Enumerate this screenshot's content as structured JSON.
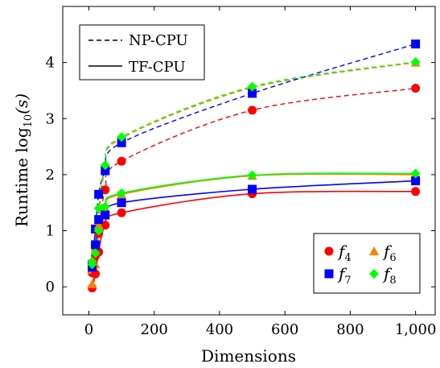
{
  "chart_data": {
    "type": "line",
    "xlabel": "Dimensions",
    "ylabel_prefix": "Runtime log",
    "ylabel_sub": "10",
    "ylabel_suffix": "(s)",
    "xlim": [
      -80,
      1060
    ],
    "ylim": [
      -0.5,
      5.0
    ],
    "x_ticks": [
      0,
      200,
      400,
      600,
      800,
      1000
    ],
    "x_tick_labels": [
      "0",
      "200",
      "400",
      "600",
      "800",
      "1,000"
    ],
    "y_ticks": [
      0,
      1,
      2,
      3,
      4
    ],
    "y_tick_labels": [
      "0",
      "1",
      "2",
      "3",
      "4"
    ],
    "x": [
      10,
      20,
      30,
      50,
      100,
      500,
      1000
    ],
    "style_legend": {
      "placement": "top-left",
      "entries": [
        {
          "label": "NP-CPU",
          "dash": "dashed"
        },
        {
          "label": "TF-CPU",
          "dash": "solid"
        }
      ]
    },
    "marker_legend": {
      "placement": "bottom-right",
      "entries": [
        {
          "base": "f",
          "sub": "4",
          "marker": "circle",
          "color": "#ff0000"
        },
        {
          "base": "f",
          "sub": "6",
          "marker": "triangle",
          "color": "#ff8000"
        },
        {
          "base": "f",
          "sub": "7",
          "marker": "square",
          "color": "#0000ff"
        },
        {
          "base": "f",
          "sub": "8",
          "marker": "diamond",
          "color": "#00ff00"
        }
      ]
    },
    "series": [
      {
        "function": "f4",
        "backend": "NP-CPU",
        "dash": "dashed",
        "color": "#ff0000",
        "marker": "circle",
        "values": [
          0.25,
          0.55,
          0.95,
          1.73,
          2.24,
          3.15,
          3.54
        ]
      },
      {
        "function": "f6",
        "backend": "NP-CPU",
        "dash": "dashed",
        "color": "#ff8000",
        "marker": "triangle",
        "values": [
          0.3,
          0.7,
          1.2,
          2.1,
          2.65,
          3.55,
          4.0
        ]
      },
      {
        "function": "f7",
        "backend": "NP-CPU",
        "dash": "dashed",
        "color": "#0000ff",
        "marker": "square",
        "values": [
          0.4,
          1.03,
          1.65,
          2.07,
          2.57,
          3.45,
          4.33
        ]
      },
      {
        "function": "f8",
        "backend": "NP-CPU",
        "dash": "dashed",
        "color": "#00ff00",
        "marker": "diamond",
        "values": [
          0.45,
          0.75,
          1.4,
          2.17,
          2.67,
          3.57,
          4.01
        ]
      },
      {
        "function": "f4",
        "backend": "TF-CPU",
        "dash": "solid",
        "color": "#ff0000",
        "marker": "circle",
        "values": [
          -0.02,
          0.23,
          0.62,
          1.1,
          1.32,
          1.66,
          1.7
        ]
      },
      {
        "function": "f6",
        "backend": "TF-CPU",
        "dash": "solid",
        "color": "#ff8000",
        "marker": "triangle",
        "values": [
          0.05,
          0.4,
          1.1,
          1.4,
          1.65,
          1.98,
          2.0
        ]
      },
      {
        "function": "f7",
        "backend": "TF-CPU",
        "dash": "solid",
        "color": "#0000ff",
        "marker": "square",
        "values": [
          0.35,
          0.75,
          1.2,
          1.28,
          1.5,
          1.74,
          1.89
        ]
      },
      {
        "function": "f8",
        "backend": "TF-CPU",
        "dash": "solid",
        "color": "#00ff00",
        "marker": "diamond",
        "values": [
          0.4,
          0.6,
          1.0,
          1.43,
          1.67,
          1.99,
          2.02
        ]
      }
    ]
  }
}
